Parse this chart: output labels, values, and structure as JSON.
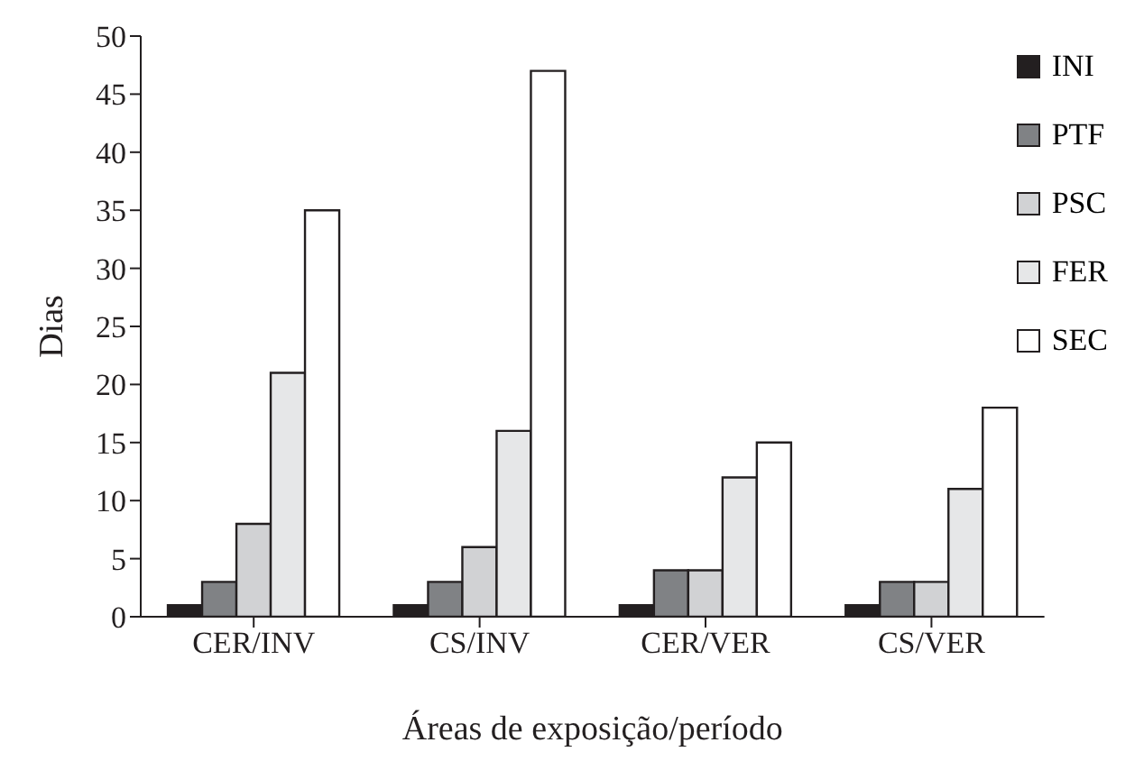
{
  "chart_data": {
    "type": "bar",
    "xlabel": "Áreas de exposição/período",
    "ylabel": "Dias",
    "categories": [
      "CER/INV",
      "CS/INV",
      "CER/VER",
      "CS/VER"
    ],
    "series": [
      {
        "name": "INI",
        "color": "#231f20",
        "values": [
          1,
          1,
          1,
          1
        ]
      },
      {
        "name": "PTF",
        "color": "#808285",
        "values": [
          3,
          3,
          4,
          3
        ]
      },
      {
        "name": "PSC",
        "color": "#d1d2d4",
        "values": [
          8,
          6,
          4,
          3
        ]
      },
      {
        "name": "FER",
        "color": "#e6e7e8",
        "values": [
          21,
          16,
          12,
          11
        ]
      },
      {
        "name": "SEC",
        "color": "#ffffff",
        "values": [
          35,
          47,
          15,
          18
        ]
      }
    ],
    "ylim": [
      0,
      50
    ],
    "yticks": [
      0,
      5,
      10,
      15,
      20,
      25,
      30,
      35,
      40,
      45,
      50
    ],
    "grid": false,
    "legend": "top right"
  }
}
